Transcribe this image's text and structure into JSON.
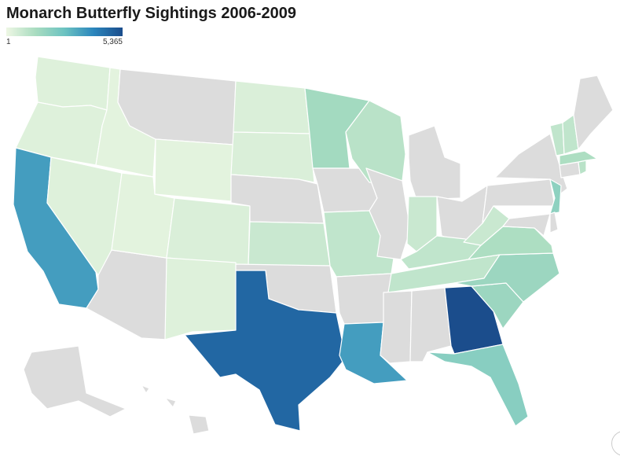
{
  "chart_data": {
    "type": "choropleth",
    "title": "Monarch Butterfly Sightings 2006-2009",
    "legend": {
      "min_label": "1",
      "max_label": "5,365",
      "min": 1,
      "max": 5365,
      "colors": [
        "#eef7e4",
        "#a9dcc0",
        "#6cc3c1",
        "#2b86bd",
        "#1b4d8c"
      ]
    },
    "no_data_color": "#dcdcdc",
    "states": [
      {
        "state": "Washington",
        "value": 20
      },
      {
        "state": "Oregon",
        "value": 20
      },
      {
        "state": "California",
        "value": 2300
      },
      {
        "state": "Idaho",
        "value": 10
      },
      {
        "state": "Nevada",
        "value": 20
      },
      {
        "state": "Arizona",
        "value": null
      },
      {
        "state": "Utah",
        "value": 10
      },
      {
        "state": "Montana",
        "value": null
      },
      {
        "state": "Wyoming",
        "value": 10
      },
      {
        "state": "Colorado",
        "value": 30
      },
      {
        "state": "New Mexico",
        "value": 20
      },
      {
        "state": "North Dakota",
        "value": 30
      },
      {
        "state": "South Dakota",
        "value": 30
      },
      {
        "state": "Nebraska",
        "value": null
      },
      {
        "state": "Kansas",
        "value": 100
      },
      {
        "state": "Oklahoma",
        "value": null
      },
      {
        "state": "Texas",
        "value": 4200
      },
      {
        "state": "Minnesota",
        "value": 400
      },
      {
        "state": "Iowa",
        "value": null
      },
      {
        "state": "Missouri",
        "value": 150
      },
      {
        "state": "Arkansas",
        "value": null
      },
      {
        "state": "Louisiana",
        "value": 2300
      },
      {
        "state": "Wisconsin",
        "value": 200
      },
      {
        "state": "Illinois",
        "value": null
      },
      {
        "state": "Michigan",
        "value": null
      },
      {
        "state": "Indiana",
        "value": 100
      },
      {
        "state": "Ohio",
        "value": null
      },
      {
        "state": "Kentucky",
        "value": 150
      },
      {
        "state": "Tennessee",
        "value": 150
      },
      {
        "state": "Mississippi",
        "value": null
      },
      {
        "state": "Alabama",
        "value": null
      },
      {
        "state": "Georgia",
        "value": 5365
      },
      {
        "state": "Florida",
        "value": 800
      },
      {
        "state": "South Carolina",
        "value": 500
      },
      {
        "state": "North Carolina",
        "value": 500
      },
      {
        "state": "Virginia",
        "value": 300
      },
      {
        "state": "West Virginia",
        "value": 100
      },
      {
        "state": "Pennsylvania",
        "value": null
      },
      {
        "state": "New York",
        "value": null
      },
      {
        "state": "New Jersey",
        "value": 700
      },
      {
        "state": "Maryland",
        "value": null
      },
      {
        "state": "Delaware",
        "value": null
      },
      {
        "state": "Connecticut",
        "value": null
      },
      {
        "state": "Rhode Island",
        "value": 200
      },
      {
        "state": "Massachusetts",
        "value": 300
      },
      {
        "state": "Vermont",
        "value": 150
      },
      {
        "state": "New Hampshire",
        "value": 150
      },
      {
        "state": "Maine",
        "value": null
      },
      {
        "state": "Alaska",
        "value": null
      },
      {
        "state": "Hawaii",
        "value": null
      }
    ]
  }
}
